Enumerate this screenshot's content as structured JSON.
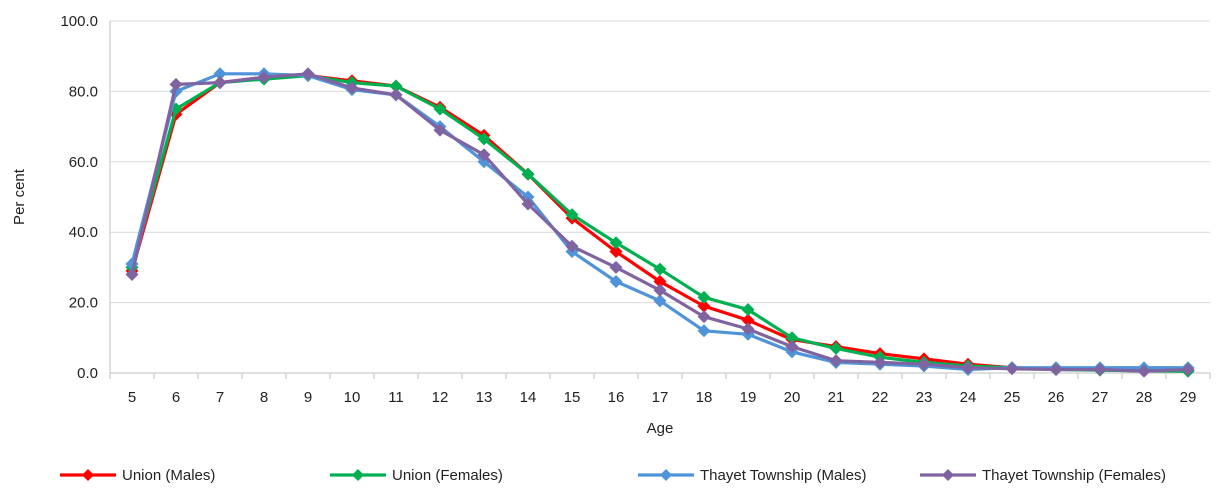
{
  "chart_data": {
    "type": "line",
    "title": "",
    "xlabel": "Age",
    "ylabel": "Per cent",
    "ylim": [
      0,
      100
    ],
    "y_ticks": [
      "0.0",
      "20.0",
      "40.0",
      "60.0",
      "80.0",
      "100.0"
    ],
    "y_tick_values": [
      0,
      20,
      40,
      60,
      80,
      100
    ],
    "x": [
      5,
      6,
      7,
      8,
      9,
      10,
      11,
      12,
      13,
      14,
      15,
      16,
      17,
      18,
      19,
      20,
      21,
      22,
      23,
      24,
      25,
      26,
      27,
      28,
      29
    ],
    "x_labels": [
      "5",
      "6",
      "7",
      "8",
      "9",
      "10",
      "11",
      "12",
      "13",
      "14",
      "15",
      "16",
      "17",
      "18",
      "19",
      "20",
      "21",
      "22",
      "23",
      "24",
      "25",
      "26",
      "27",
      "28",
      "29"
    ],
    "grid": "horizontal",
    "legend_position": "bottom",
    "series": [
      {
        "name": "Union (Males)",
        "color": "#ff0000",
        "values": [
          29.0,
          73.5,
          82.5,
          84.0,
          84.5,
          83.0,
          81.5,
          75.5,
          67.5,
          56.5,
          44.0,
          34.5,
          26.0,
          19.0,
          15.0,
          9.5,
          7.5,
          5.5,
          4.0,
          2.5,
          1.5,
          1.2,
          1.0,
          0.9,
          0.8
        ]
      },
      {
        "name": "Union (Females)",
        "color": "#00b050",
        "values": [
          30.0,
          75.0,
          82.5,
          83.5,
          84.5,
          82.5,
          81.5,
          75.0,
          66.5,
          56.5,
          45.0,
          37.0,
          29.5,
          21.5,
          18.0,
          10.0,
          7.0,
          4.5,
          3.0,
          2.0,
          1.5,
          1.0,
          0.8,
          0.6,
          0.5
        ]
      },
      {
        "name": "Thayet Township (Males)",
        "color": "#4f94d8",
        "values": [
          31.0,
          80.0,
          85.0,
          85.0,
          84.5,
          80.5,
          79.0,
          70.0,
          60.0,
          50.0,
          34.5,
          26.0,
          20.5,
          12.0,
          11.0,
          6.0,
          3.0,
          2.5,
          2.0,
          1.0,
          1.5,
          1.5,
          1.5,
          1.5,
          1.5
        ]
      },
      {
        "name": "Thayet Township (Females)",
        "color": "#8064a2",
        "values": [
          28.0,
          82.0,
          82.5,
          84.0,
          85.0,
          81.0,
          79.0,
          69.0,
          62.0,
          48.0,
          36.0,
          30.0,
          23.5,
          16.0,
          12.5,
          7.5,
          3.5,
          3.0,
          2.5,
          1.5,
          1.2,
          1.0,
          1.0,
          0.5,
          1.0
        ]
      }
    ]
  }
}
